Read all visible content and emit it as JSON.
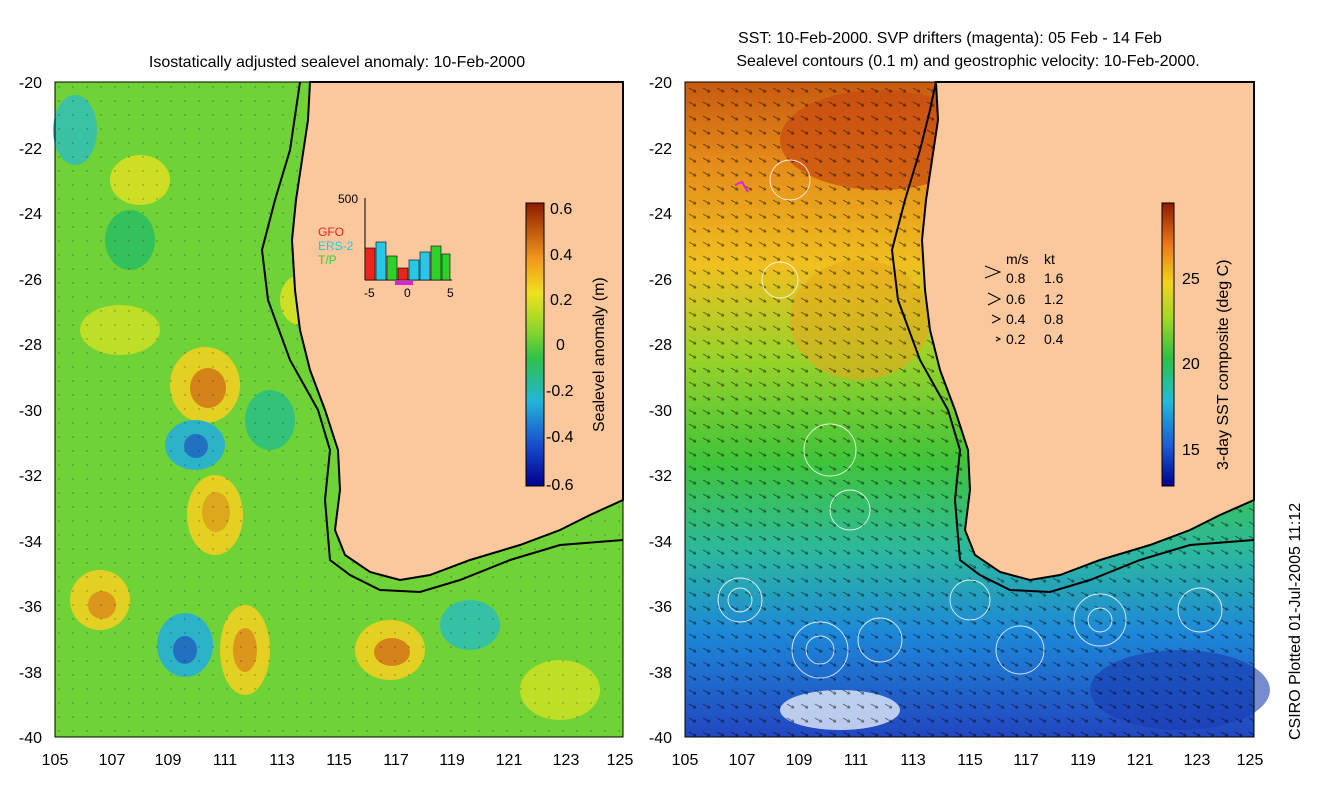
{
  "left_panel": {
    "title": "Isostatically adjusted sealevel anomaly: 10-Feb-2000",
    "y_ticks": [
      "-20",
      "-22",
      "-24",
      "-26",
      "-28",
      "-30",
      "-32",
      "-34",
      "-36",
      "-38",
      "-40"
    ],
    "x_ticks": [
      "105",
      "107",
      "109",
      "111",
      "113",
      "115",
      "117",
      "119",
      "121",
      "123",
      "125"
    ],
    "colorbar": {
      "label": "Sealevel anomaly (m)",
      "ticks": [
        "0.6",
        "0.4",
        "0.2",
        "0",
        "-0.2",
        "-0.4",
        "-0.6"
      ]
    },
    "inset": {
      "y_max_label": "500",
      "series": [
        "GFO",
        "ERS-2",
        "T/P"
      ],
      "series_colors": [
        "#e8261e",
        "#26c8e6",
        "#2ed02a"
      ],
      "x_ticks": [
        "-5",
        "0",
        "5"
      ]
    }
  },
  "right_panel": {
    "title_line1": "SST: 10-Feb-2000. SVP drifters (magenta): 05 Feb - 14 Feb",
    "title_line2": "Sealevel contours (0.1 m) and geostrophic velocity: 10-Feb-2000.",
    "y_ticks": [
      "-20",
      "-22",
      "-24",
      "-26",
      "-28",
      "-30",
      "-32",
      "-34",
      "-36",
      "-38",
      "-40"
    ],
    "x_ticks": [
      "105",
      "107",
      "109",
      "111",
      "113",
      "115",
      "117",
      "119",
      "121",
      "123",
      "125"
    ],
    "colorbar": {
      "label": "3-day SST composite (deg C)",
      "ticks": [
        "25",
        "20",
        "15"
      ]
    },
    "velocity_legend": {
      "header_ms": "m/s",
      "header_kt": "kt",
      "rows": [
        {
          "ms": "0.8",
          "kt": "1.6"
        },
        {
          "ms": "0.6",
          "kt": "1.2"
        },
        {
          "ms": "0.4",
          "kt": "0.8"
        },
        {
          "ms": "0.2",
          "kt": "0.4"
        }
      ]
    }
  },
  "footer": "CSIRO Plotted 01-Jul-2005 11:12"
}
